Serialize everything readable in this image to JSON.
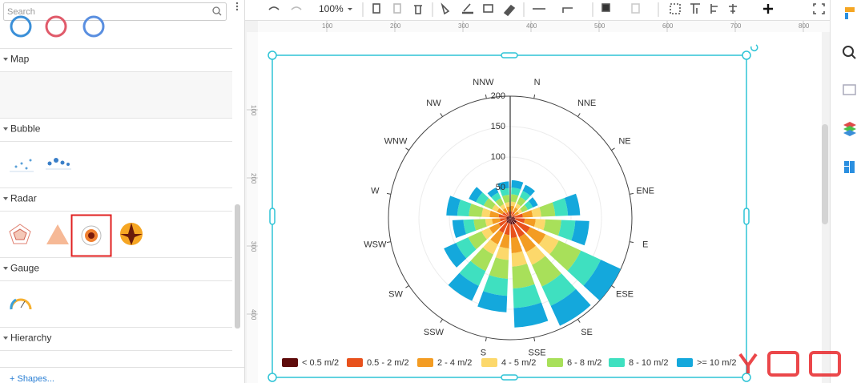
{
  "sidebar": {
    "search_placeholder": "Search",
    "sections": [
      "Map",
      "Bubble",
      "Radar",
      "Gauge",
      "Hierarchy"
    ],
    "footer": "+ Shapes..."
  },
  "toolbar": {
    "zoom": "100%"
  },
  "ruler": {
    "top": [
      100,
      200,
      300,
      400,
      500,
      600,
      700,
      800
    ],
    "left": [
      100,
      200,
      300,
      400
    ]
  },
  "chart_data": {
    "type": "windrose",
    "categories": [
      "N",
      "NNE",
      "NE",
      "ENE",
      "E",
      "ESE",
      "SE",
      "SSE",
      "S",
      "SSW",
      "SW",
      "WSW",
      "W",
      "WNW",
      "NW",
      "NNW"
    ],
    "rlim": [
      0,
      200
    ],
    "rticks": [
      50,
      100,
      150,
      200
    ],
    "grid": true,
    "legend": "bottom",
    "series": [
      {
        "name": "< 0.5 m/2",
        "color": "#5e0b0b",
        "values": [
          4,
          4,
          3,
          7,
          8,
          12,
          12,
          11,
          9,
          9,
          7,
          6,
          6,
          5,
          3,
          4
        ]
      },
      {
        "name": "0.5 - 2 m/2",
        "color": "#e8511c",
        "values": [
          7,
          7,
          6,
          14,
          16,
          24,
          23,
          22,
          19,
          18,
          14,
          11,
          13,
          9,
          7,
          7
        ]
      },
      {
        "name": "2 - 4 m/2",
        "color": "#f39c23",
        "values": [
          9,
          8,
          7,
          16,
          18,
          28,
          27,
          25,
          22,
          21,
          17,
          13,
          15,
          10,
          8,
          8
        ]
      },
      {
        "name": "4 - 5 m/2",
        "color": "#fcd86b",
        "values": [
          7,
          7,
          6,
          14,
          16,
          24,
          23,
          22,
          19,
          18,
          14,
          11,
          13,
          9,
          7,
          7
        ]
      },
      {
        "name": "6 - 8 m/2",
        "color": "#a8e05a",
        "values": [
          12,
          12,
          10,
          23,
          26,
          40,
          39,
          36,
          31,
          30,
          24,
          19,
          21,
          15,
          11,
          12
        ]
      },
      {
        "name": "8 - 10 m/2",
        "color": "#3fe0c0",
        "values": [
          11,
          11,
          9,
          21,
          23,
          36,
          35,
          32,
          28,
          27,
          22,
          17,
          19,
          14,
          10,
          11
        ]
      },
      {
        "name": ">= 10 m/2",
        "color": "#14a8dc",
        "values": [
          12,
          11,
          9,
          20,
          23,
          36,
          36,
          32,
          27,
          27,
          22,
          18,
          18,
          13,
          9,
          11
        ]
      }
    ]
  }
}
